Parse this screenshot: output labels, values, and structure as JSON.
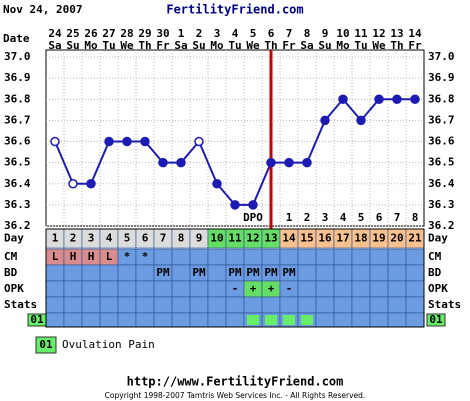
{
  "date_label": "Nov 24, 2007",
  "site": "FertilityFriend.com",
  "chart_data": {
    "type": "line",
    "x_label": "Date",
    "categories": [
      "24",
      "25",
      "26",
      "27",
      "28",
      "29",
      "30",
      "1",
      "2",
      "3",
      "4",
      "5",
      "6",
      "7",
      "8",
      "9",
      "10",
      "11",
      "12",
      "13",
      "14"
    ],
    "weekdays": [
      "Sa",
      "Su",
      "Mo",
      "Tu",
      "We",
      "Th",
      "Fr",
      "Sa",
      "Su",
      "Mo",
      "Tu",
      "We",
      "Th",
      "Fr",
      "Sa",
      "Su",
      "Mo",
      "Tu",
      "We",
      "Th",
      "Fr"
    ],
    "values": [
      36.6,
      36.4,
      36.4,
      36.6,
      36.6,
      36.6,
      36.5,
      36.5,
      36.6,
      36.4,
      36.3,
      36.3,
      36.5,
      36.5,
      36.5,
      36.7,
      36.8,
      36.7,
      36.8,
      36.8,
      36.8
    ],
    "point_style": [
      "open",
      "open",
      "filled",
      "filled",
      "filled",
      "filled",
      "filled",
      "filled",
      "open",
      "filled",
      "filled",
      "filled",
      "filled",
      "filled",
      "filled",
      "filled",
      "filled",
      "filled",
      "filled",
      "filled",
      "filled"
    ],
    "color": "#1c1cb4",
    "ylim": [
      36.2,
      37.0
    ],
    "yticks": [
      {
        "value": 37.0,
        "label": "37.0"
      },
      36.9,
      36.8,
      36.7,
      36.6,
      36.5,
      36.4,
      36.3,
      36.2
    ],
    "grid": true,
    "ovulation_index": 12,
    "ovulation_color": "#cc0000",
    "dpo_label": "DPO",
    "dpo": [
      null,
      null,
      null,
      null,
      null,
      null,
      null,
      null,
      null,
      null,
      null,
      null,
      null,
      1,
      2,
      3,
      4,
      5,
      6,
      7,
      8
    ],
    "row_labels": [
      "Day",
      "CM",
      "BD",
      "OPK",
      "Stats"
    ],
    "day_numbers": [
      1,
      2,
      3,
      4,
      5,
      6,
      7,
      8,
      9,
      10,
      11,
      12,
      13,
      14,
      15,
      16,
      17,
      18,
      19,
      20,
      21
    ],
    "day_colors": [
      "#dcdcdc",
      "#dcdcdc",
      "#dcdcdc",
      "#dcdcdc",
      "#dcdcdc",
      "#dcdcdc",
      "#dcdcdc",
      "#dcdcdc",
      "#dcdcdc",
      "#66dd66",
      "#66dd66",
      "#66dd66",
      "#66dd66",
      "#f7c08f",
      "#f7c08f",
      "#f7c08f",
      "#f7c08f",
      "#f7c08f",
      "#f7c08f",
      "#f7c08f",
      "#f7c08f"
    ],
    "cm": [
      "L",
      "H",
      "H",
      "L",
      "*",
      "*",
      null,
      null,
      null,
      null,
      null,
      null,
      null,
      null,
      null,
      null,
      null,
      null,
      null,
      null,
      null
    ],
    "cm_colors": [
      "#d98c8c",
      "#d98c8c",
      "#d98c8c",
      "#d98c8c",
      null,
      null,
      null,
      null,
      null,
      null,
      null,
      null,
      null,
      null,
      null,
      null,
      null,
      null,
      null,
      null,
      null
    ],
    "bd": [
      null,
      null,
      null,
      null,
      null,
      null,
      "PM",
      null,
      "PM",
      null,
      "PM",
      "PM",
      "PM",
      "PM",
      null,
      null,
      null,
      null,
      null,
      null,
      null
    ],
    "opk": [
      null,
      null,
      null,
      null,
      null,
      null,
      null,
      null,
      null,
      null,
      "-",
      "+",
      "+",
      "-",
      null,
      null,
      null,
      null,
      null,
      null,
      null
    ],
    "opk_colors": [
      null,
      null,
      null,
      null,
      null,
      null,
      null,
      null,
      null,
      null,
      null,
      "#66dd66",
      "#66dd66",
      null,
      null,
      null,
      null,
      null,
      null,
      null,
      null
    ],
    "row_color": "#6b9be0",
    "symptom_code": "01",
    "symptom_color": "#66ee66",
    "symptom_days": [
      false,
      false,
      false,
      false,
      false,
      false,
      false,
      false,
      false,
      false,
      false,
      true,
      true,
      true,
      true,
      false,
      false,
      false,
      false,
      false,
      false
    ]
  },
  "legend": {
    "code": "01",
    "text": "Ovulation Pain"
  },
  "footer": {
    "url": "http://www.FertilityFriend.com",
    "copyright": "Copyright 1998-2007 Tamtris Web Services Inc. - All Rights Reserved."
  }
}
